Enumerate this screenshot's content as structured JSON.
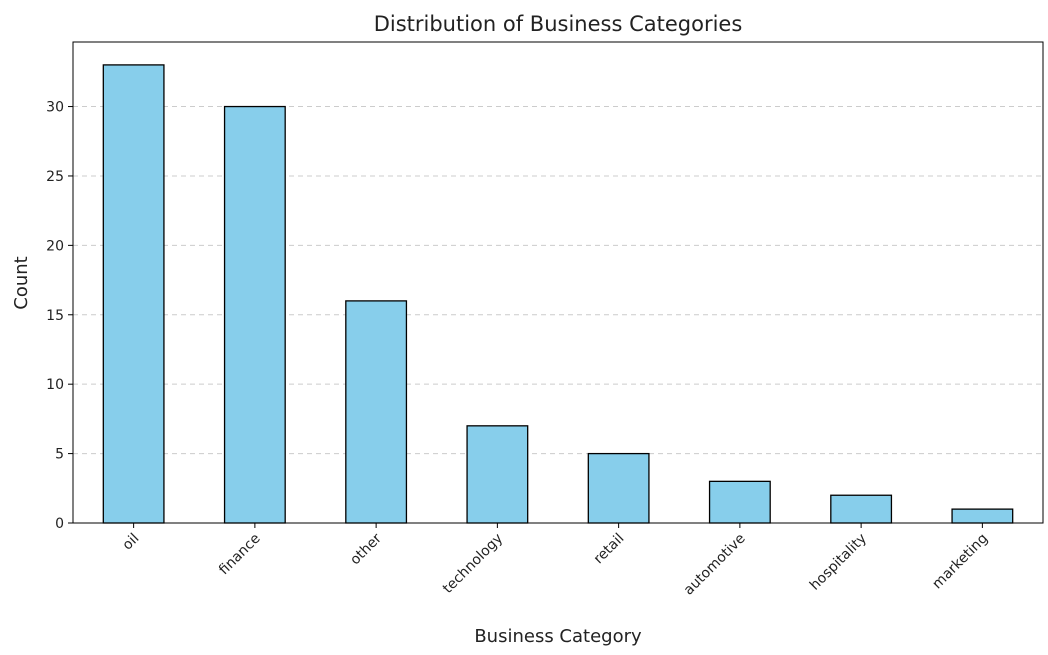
{
  "chart_data": {
    "type": "bar",
    "title": "Distribution of Business Categories",
    "xlabel": "Business Category",
    "ylabel": "Count",
    "categories": [
      "oil",
      "finance",
      "other",
      "technology",
      "retail",
      "automotive",
      "hospitality",
      "marketing"
    ],
    "values": [
      33,
      30,
      16,
      7,
      5,
      3,
      2,
      1
    ],
    "ylim": [
      0,
      34.65
    ],
    "yticks": [
      0,
      5,
      10,
      15,
      20,
      25,
      30
    ],
    "grid": "y-dashed",
    "bar_color": "#87CEEB",
    "edge_color": "#000000",
    "grid_color": "#cccccc"
  }
}
